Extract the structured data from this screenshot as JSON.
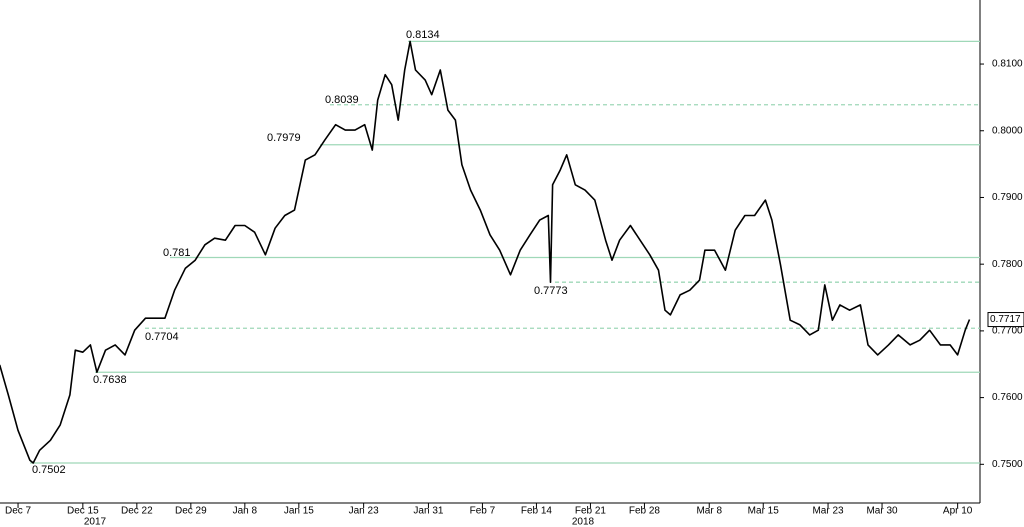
{
  "chart_data": {
    "type": "line",
    "xlim": [
      -1.67,
      89.07
    ],
    "ylim": [
      0.7442,
      0.8196
    ],
    "xticks": [
      {
        "value": 0,
        "label": "Dec 7"
      },
      {
        "value": 6,
        "label": "Dec 15"
      },
      {
        "value": 11,
        "label": "Dec 22"
      },
      {
        "value": 16,
        "label": "Dec 29"
      },
      {
        "value": 21,
        "label": "Jan 8"
      },
      {
        "value": 26,
        "label": "Jan 15"
      },
      {
        "value": 32,
        "label": "Jan 23"
      },
      {
        "value": 38,
        "label": "Jan 31"
      },
      {
        "value": 43,
        "label": "Feb 7"
      },
      {
        "value": 48,
        "label": "Feb 14"
      },
      {
        "value": 53,
        "label": "Feb 21"
      },
      {
        "value": 58,
        "label": "Feb 28"
      },
      {
        "value": 64,
        "label": "Mar 8"
      },
      {
        "value": 69,
        "label": "Mar 15"
      },
      {
        "value": 75,
        "label": "Mar 23"
      },
      {
        "value": 80,
        "label": "Mar 30"
      },
      {
        "value": 87,
        "label": "Apr 10"
      }
    ],
    "years": [
      "2017",
      "2018"
    ],
    "yticks": [
      {
        "value": 0.75,
        "label": "0.7500"
      },
      {
        "value": 0.76,
        "label": "0.7600"
      },
      {
        "value": 0.77,
        "label": "0.7700"
      },
      {
        "value": 0.78,
        "label": "0.7800"
      },
      {
        "value": 0.79,
        "label": "0.7900"
      },
      {
        "value": 0.8,
        "label": "0.8000"
      },
      {
        "value": 0.81,
        "label": "0.8100"
      }
    ],
    "levels": [
      {
        "value": 0.8134,
        "style": "solid"
      },
      {
        "value": 0.8039,
        "style": "dashed"
      },
      {
        "value": 0.7979,
        "style": "solid"
      },
      {
        "value": 0.781,
        "style": "solid"
      },
      {
        "value": 0.7773,
        "style": "dashed"
      },
      {
        "value": 0.7704,
        "style": "dashed"
      },
      {
        "value": 0.7638,
        "style": "solid"
      },
      {
        "value": 0.7502,
        "style": "solid"
      }
    ],
    "level_color": "#9fd8b8",
    "series": [
      {
        "color": "#000000",
        "x": [
          -1.7,
          -0.9,
          0,
          1.1,
          1.4,
          2.0,
          3.0,
          3.9,
          4.8,
          5.3,
          6.0,
          6.7,
          7.3,
          8.1,
          9.0,
          9.9,
          10.8,
          11.8,
          12.7,
          13.6,
          14.5,
          15.5,
          16.4,
          17.3,
          18.2,
          19.2,
          20.1,
          21.0,
          21.9,
          22.9,
          23.8,
          24.7,
          25.6,
          26.6,
          27.5,
          28.4,
          29.4,
          30.3,
          31.2,
          32.1,
          32.8,
          33.3,
          34.0,
          34.6,
          35.2,
          35.8,
          36.3,
          36.8,
          37.7,
          38.3,
          39.1,
          39.8,
          40.5,
          41.1,
          41.9,
          42.8,
          43.7,
          44.6,
          45.6,
          46.5,
          47.4,
          48.3,
          49.1,
          49.3,
          49.5,
          50.2,
          50.8,
          51.6,
          52.5,
          53.4,
          54.4,
          55.0,
          55.7,
          56.7,
          57.6,
          58.5,
          59.3,
          59.9,
          60.4,
          61.3,
          62.2,
          63.1,
          63.6,
          64.5,
          65.5,
          66.4,
          67.3,
          68.2,
          69.2,
          69.8,
          70.6,
          71.5,
          72.4,
          73.3,
          74.1,
          74.7,
          75.4,
          76.1,
          77.0,
          78.0,
          78.7,
          79.6,
          80.6,
          81.5,
          82.6,
          83.5,
          84.4,
          85.4,
          86.3,
          87.0,
          87.7,
          88.1
        ],
        "values": [
          0.7649,
          0.7604,
          0.7551,
          0.7506,
          0.7502,
          0.7521,
          0.7536,
          0.7559,
          0.7604,
          0.7671,
          0.7668,
          0.7679,
          0.7638,
          0.7671,
          0.7679,
          0.7664,
          0.7701,
          0.7719,
          0.7719,
          0.7719,
          0.7761,
          0.7794,
          0.7806,
          0.7829,
          0.7839,
          0.7836,
          0.7858,
          0.7858,
          0.7848,
          0.7814,
          0.7854,
          0.7873,
          0.7881,
          0.7956,
          0.7964,
          0.7986,
          0.8009,
          0.8001,
          0.8001,
          0.8009,
          0.7971,
          0.8046,
          0.8084,
          0.8069,
          0.8016,
          0.8091,
          0.8134,
          0.8091,
          0.8076,
          0.8054,
          0.8091,
          0.8031,
          0.8016,
          0.7949,
          0.7911,
          0.7881,
          0.7844,
          0.7821,
          0.7784,
          0.7821,
          0.7844,
          0.7866,
          0.7873,
          0.7773,
          0.7919,
          0.7941,
          0.7964,
          0.7919,
          0.7911,
          0.7896,
          0.7836,
          0.7806,
          0.7836,
          0.7858,
          0.7836,
          0.7814,
          0.7791,
          0.7731,
          0.7724,
          0.7754,
          0.7761,
          0.7776,
          0.7821,
          0.7821,
          0.7791,
          0.7851,
          0.7873,
          0.7873,
          0.7896,
          0.7866,
          0.7799,
          0.7716,
          0.7709,
          0.7694,
          0.7701,
          0.7769,
          0.7716,
          0.7739,
          0.7731,
          0.7739,
          0.7679,
          0.7664,
          0.7679,
          0.7694,
          0.7679,
          0.7686,
          0.7701,
          0.7679,
          0.7679,
          0.7664,
          0.7701,
          0.7717
        ]
      }
    ]
  }
}
